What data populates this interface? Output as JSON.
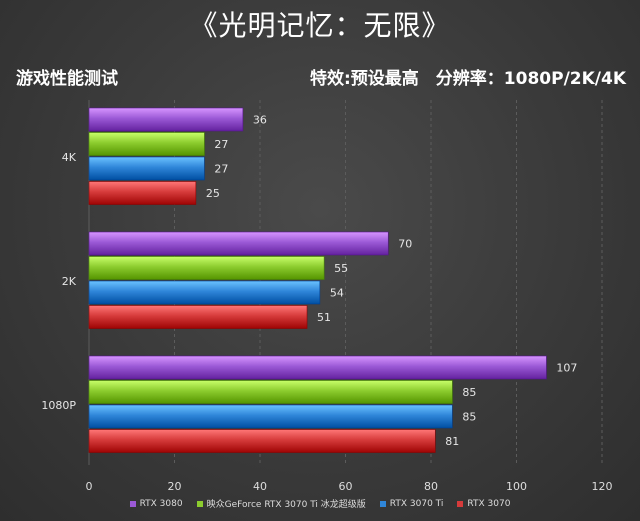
{
  "header": {
    "title": "《光明记忆：无限》",
    "left_label": "游戏性能测试",
    "right_label": "特效:预设最高　分辨率：1080P/2K/4K"
  },
  "chart_data": {
    "type": "bar",
    "orientation": "horizontal",
    "categories": [
      "4K",
      "2K",
      "1080P"
    ],
    "series": [
      {
        "name": "RTX 3080",
        "color": "#9b59d6",
        "values": [
          36,
          70,
          107
        ]
      },
      {
        "name": "映众GeForce RTX 3070 Ti 冰龙超级版",
        "color": "#8ccc2e",
        "values": [
          27,
          55,
          85
        ]
      },
      {
        "name": "RTX 3070 Ti",
        "color": "#2f86d9",
        "values": [
          27,
          54,
          85
        ]
      },
      {
        "name": "RTX 3070",
        "color": "#d63b3b",
        "values": [
          25,
          51,
          81
        ]
      }
    ],
    "xlim": [
      0,
      120
    ],
    "xticks": [
      0,
      20,
      40,
      60,
      80,
      100,
      120
    ],
    "grid": true,
    "legend_position": "bottom"
  }
}
